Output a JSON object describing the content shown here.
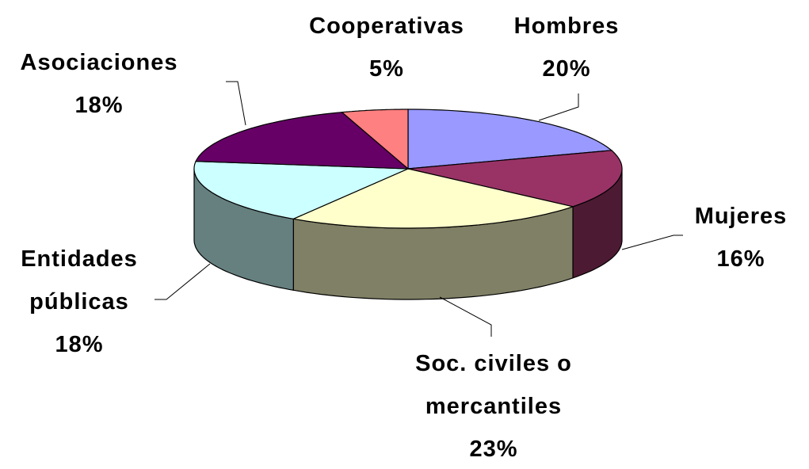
{
  "chart_data": {
    "type": "pie3d",
    "categories": [
      "Hombres",
      "Mujeres",
      "Soc. civiles o mercantiles",
      "Entidades públicas",
      "Asociaciones",
      "Cooperativas"
    ],
    "values": [
      20,
      16,
      23,
      18,
      18,
      5
    ],
    "value_labels": [
      "20%",
      "16%",
      "23%",
      "18%",
      "18%",
      "5%"
    ],
    "colors": [
      "#9999ff",
      "#993366",
      "#ffffcc",
      "#ccffff",
      "#660066",
      "#ff8080"
    ]
  }
}
